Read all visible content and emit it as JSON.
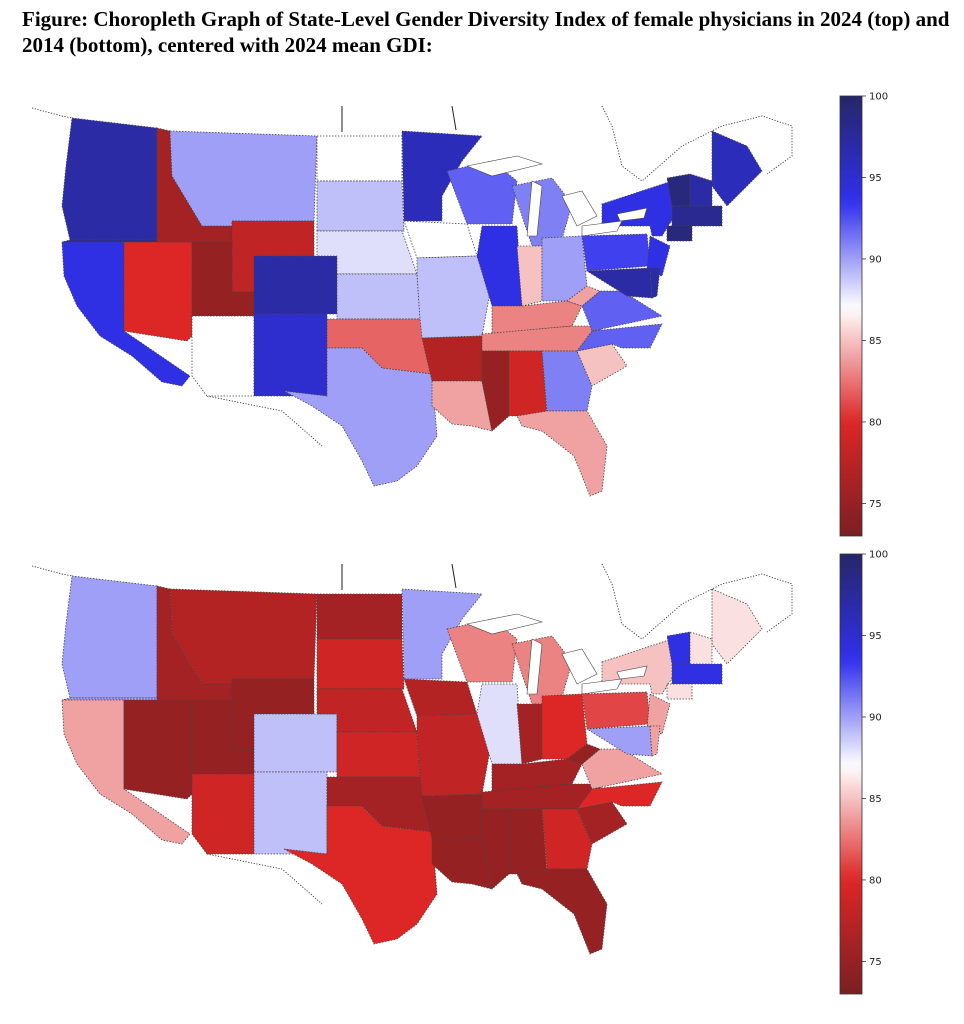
{
  "figure": {
    "title": "Figure: Choropleth Graph of State-Level Gender Diversity Index of female physicians in 2024 (top) and 2014 (bottom), centered with 2024 mean GDI:"
  },
  "colorbar": {
    "min": 73,
    "max": 100,
    "center": 87,
    "ticks": [
      75,
      80,
      85,
      90,
      95,
      100
    ],
    "colors": [
      "#7a1f22",
      "#dd2626",
      "#ffffff",
      "#3030ee",
      "#262668"
    ]
  },
  "maps": [
    {
      "panel": "2024",
      "states": {
        "WA": 97,
        "OR": 98,
        "CA": 94,
        "NV": 80,
        "ID": 76,
        "MT": 90,
        "WY": 78,
        "UT": 75,
        "AZ": 87,
        "CO": 97,
        "NM": 95,
        "ND": 87,
        "SD": 89,
        "NE": 88,
        "KS": 89,
        "OK": 82,
        "TX": 90,
        "MN": 96,
        "IA": 87,
        "MO": 89,
        "AR": 77,
        "LA": 84,
        "WI": 92,
        "IL": 94,
        "MI": 91,
        "IN": 85,
        "OH": 90,
        "KY": 83,
        "TN": 83,
        "MS": 75,
        "AL": 79,
        "GA": 91,
        "FL": 84,
        "SC": 85,
        "NC": 92,
        "VA": 92,
        "WV": 84,
        "PA": 93,
        "NY": 94,
        "ME": 96,
        "VT": 99,
        "NH": 97,
        "MA": 98,
        "CT": 99,
        "NJ": 94,
        "MD": 97,
        "DE": 97
      }
    },
    {
      "panel": "2014",
      "states": {
        "WA": 90,
        "OR": 90,
        "CA": 84,
        "NV": 75,
        "ID": 76,
        "MT": 77,
        "WY": 75,
        "UT": 75,
        "AZ": 79,
        "CO": 89,
        "NM": 89,
        "ND": 76,
        "SD": 79,
        "NE": 78,
        "KS": 79,
        "OK": 76,
        "TX": 80,
        "MN": 90,
        "IA": 77,
        "MO": 78,
        "AR": 75,
        "LA": 75,
        "WI": 83,
        "IL": 88,
        "MI": 83,
        "IN": 76,
        "OH": 80,
        "KY": 76,
        "TN": 76,
        "MS": 75,
        "AL": 75,
        "GA": 79,
        "FL": 75,
        "SC": 76,
        "NC": 80,
        "VA": 84,
        "WV": 75,
        "PA": 81,
        "NY": 85,
        "ME": 86,
        "VT": 94,
        "NH": 86,
        "MA": 94,
        "CT": 86,
        "NJ": 84,
        "MD": 90,
        "DE": 84
      }
    }
  ]
}
